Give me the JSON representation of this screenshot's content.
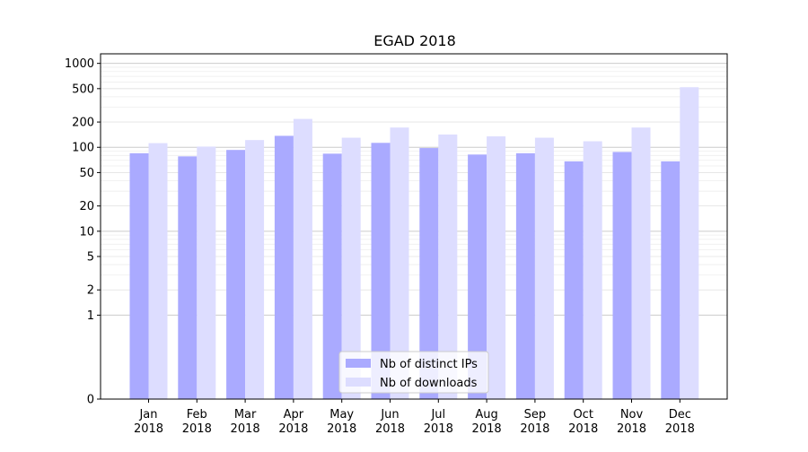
{
  "chart_data": {
    "type": "bar",
    "title": "EGAD 2018",
    "xlabel": "",
    "ylabel": "",
    "yscale": "symlog",
    "ylim": [
      0,
      1300
    ],
    "yticks": [
      0,
      1,
      2,
      5,
      10,
      20,
      50,
      100,
      200,
      500,
      1000
    ],
    "ytick_labels": [
      "0",
      "1",
      "2",
      "5",
      "10",
      "20",
      "50",
      "100",
      "200",
      "500",
      "1000"
    ],
    "grid": true,
    "legend_position": "bottom-center",
    "categories": [
      "Jan",
      "Feb",
      "Mar",
      "Apr",
      "May",
      "Jun",
      "Jul",
      "Aug",
      "Sep",
      "Oct",
      "Nov",
      "Dec"
    ],
    "category_years": [
      "2018",
      "2018",
      "2018",
      "2018",
      "2018",
      "2018",
      "2018",
      "2018",
      "2018",
      "2018",
      "2018",
      "2018"
    ],
    "series": [
      {
        "name": "Nb of distinct IPs",
        "color": "#aaaaff",
        "values": [
          85,
          78,
          93,
          137,
          84,
          113,
          98,
          82,
          85,
          68,
          88,
          68
        ]
      },
      {
        "name": "Nb of downloads",
        "color": "#ddddff",
        "values": [
          112,
          102,
          122,
          218,
          130,
          172,
          142,
          135,
          130,
          118,
          172,
          520
        ]
      }
    ]
  }
}
